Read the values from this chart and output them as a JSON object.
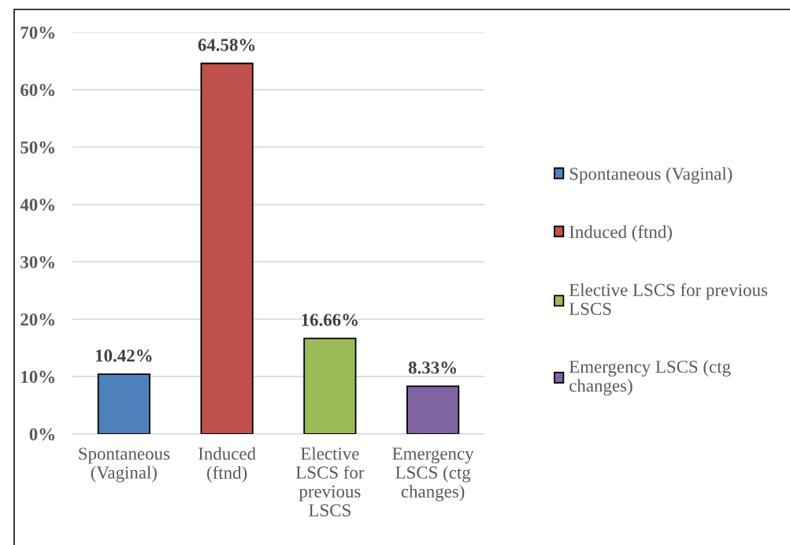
{
  "chart_data": {
    "type": "bar",
    "categories": [
      "Spontaneous (Vaginal)",
      "Induced (ftnd)",
      "Elective LSCS for previous LSCS",
      "Emergency LSCS (ctg changes)"
    ],
    "series": [
      {
        "name": "Spontaneous (Vaginal)",
        "color": "#4f81bd",
        "values": [
          10.42,
          null,
          null,
          null
        ],
        "value_labels": [
          "10.42%",
          null,
          null,
          null
        ]
      },
      {
        "name": "Induced (ftnd)",
        "color": "#c0504d",
        "values": [
          null,
          64.58,
          null,
          null
        ],
        "value_labels": [
          null,
          "64.58%",
          null,
          null
        ]
      },
      {
        "name": "Elective LSCS for previous LSCS",
        "color": "#9bbb59",
        "values": [
          null,
          null,
          16.66,
          null
        ],
        "value_labels": [
          null,
          null,
          "16.66%",
          null
        ]
      },
      {
        "name": "Emergency LSCS (ctg changes)",
        "color": "#8064a2",
        "values": [
          null,
          null,
          null,
          8.33
        ],
        "value_labels": [
          null,
          null,
          null,
          "8.33%"
        ]
      }
    ],
    "stacked": true,
    "ylim": [
      0,
      70
    ],
    "yticks": [
      {
        "value": 0,
        "label": "0%"
      },
      {
        "value": 10,
        "label": "10%"
      },
      {
        "value": 20,
        "label": "20%"
      },
      {
        "value": 30,
        "label": "30%"
      },
      {
        "value": 40,
        "label": "40%"
      },
      {
        "value": 50,
        "label": "50%"
      },
      {
        "value": 60,
        "label": "60%"
      },
      {
        "value": 70,
        "label": "70%"
      }
    ],
    "grid": "y",
    "legend": "right"
  }
}
